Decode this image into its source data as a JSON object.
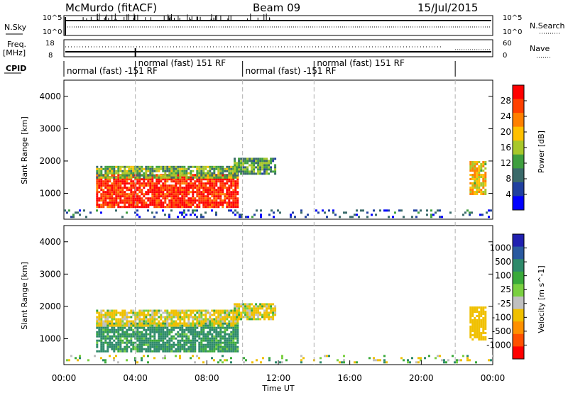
{
  "header": {
    "title": "McMurdo (fitACF)",
    "beam": "Beam 09",
    "date": "15/Jul/2015"
  },
  "noise_panel": {
    "left_label": "N.Sky",
    "right_label": "N.Search",
    "left_top": "10^5",
    "left_bottom": "10^0",
    "right_top": "10^5",
    "right_bottom": "10^0"
  },
  "freq_panel": {
    "left_label": "Freq.",
    "left_unit": "[MHz]",
    "left_top": "18",
    "left_bottom": "8",
    "right_label": "Nave",
    "right_top": "60",
    "right_bottom": "0"
  },
  "cpid_panel": {
    "label": "CPID",
    "segments": [
      {
        "text": "normal (fast) -151 RF",
        "start": 0,
        "end": 4
      },
      {
        "text": "normal (fast) 151 RF",
        "start": 4,
        "end": 10
      },
      {
        "text": "normal (fast) -151 RF",
        "start": 10,
        "end": 14
      },
      {
        "text": "normal (fast) 151 RF",
        "start": 14,
        "end": 21.9
      }
    ]
  },
  "x_axis": {
    "label": "Time UT",
    "ticks": [
      "00:00",
      "04:00",
      "08:00",
      "12:00",
      "16:00",
      "20:00",
      "00:00"
    ]
  },
  "power_colorbar": {
    "title": "Power [dB]",
    "ticks": [
      "28",
      "24",
      "20",
      "16",
      "12",
      "8",
      "4"
    ],
    "colors": [
      "#ff0000",
      "#ff4000",
      "#ff8000",
      "#ffc000",
      "#a8c82a",
      "#3f9f3f",
      "#3a6a6a",
      "#2040a0",
      "#0000ff"
    ]
  },
  "velocity_colorbar": {
    "title": "Velocity [m s^-1]",
    "ticks": [
      "1000",
      "500",
      "100",
      "25",
      "-25",
      "-100",
      "-500",
      "-1000"
    ],
    "colors": [
      "#2020b0",
      "#2a5aa0",
      "#2e8a6a",
      "#3aaa3a",
      "#7ad040",
      "#c0c0c0",
      "#f0c000",
      "#ff9000",
      "#ff5000",
      "#ff0000"
    ]
  },
  "chart_data": [
    {
      "type": "heatmap",
      "name": "power",
      "ylabel": "Slant Range [km]",
      "xlabel": "Time UT",
      "xlim": [
        0,
        24
      ],
      "ylim": [
        200,
        4500
      ],
      "yticks": [
        1000,
        2000,
        3000,
        4000
      ],
      "blobs": [
        {
          "t0": 1.8,
          "t1": 9.7,
          "r0": 550,
          "r1": 1600,
          "level": 27
        },
        {
          "t0": 1.8,
          "t1": 9.7,
          "r0": 1500,
          "r1": 1850,
          "level": 13
        },
        {
          "t0": 9.5,
          "t1": 11.8,
          "r0": 1600,
          "r1": 2100,
          "level": 11
        },
        {
          "t0": 22.7,
          "t1": 23.6,
          "r0": 1000,
          "r1": 2000,
          "level": 18
        },
        {
          "t0": 0.0,
          "t1": 24.0,
          "r0": 250,
          "r1": 500,
          "level": 6
        }
      ]
    },
    {
      "type": "heatmap",
      "name": "velocity",
      "ylabel": "Slant Range [km]",
      "xlabel": "Time UT",
      "xlim": [
        0,
        24
      ],
      "ylim": [
        200,
        4500
      ],
      "yticks": [
        1000,
        2000,
        3000,
        4000
      ],
      "blobs": [
        {
          "t0": 1.8,
          "t1": 9.7,
          "r0": 600,
          "r1": 1500,
          "level": 200
        },
        {
          "t0": 1.8,
          "t1": 9.7,
          "r0": 1400,
          "r1": 1900,
          "level": -150
        },
        {
          "t0": 9.5,
          "t1": 11.8,
          "r0": 1600,
          "r1": 2100,
          "level": -120
        },
        {
          "t0": 22.7,
          "t1": 23.6,
          "r0": 1000,
          "r1": 2000,
          "level": -300
        },
        {
          "t0": 0.0,
          "t1": 24.0,
          "r0": 250,
          "r1": 500,
          "level": -60
        }
      ]
    }
  ]
}
